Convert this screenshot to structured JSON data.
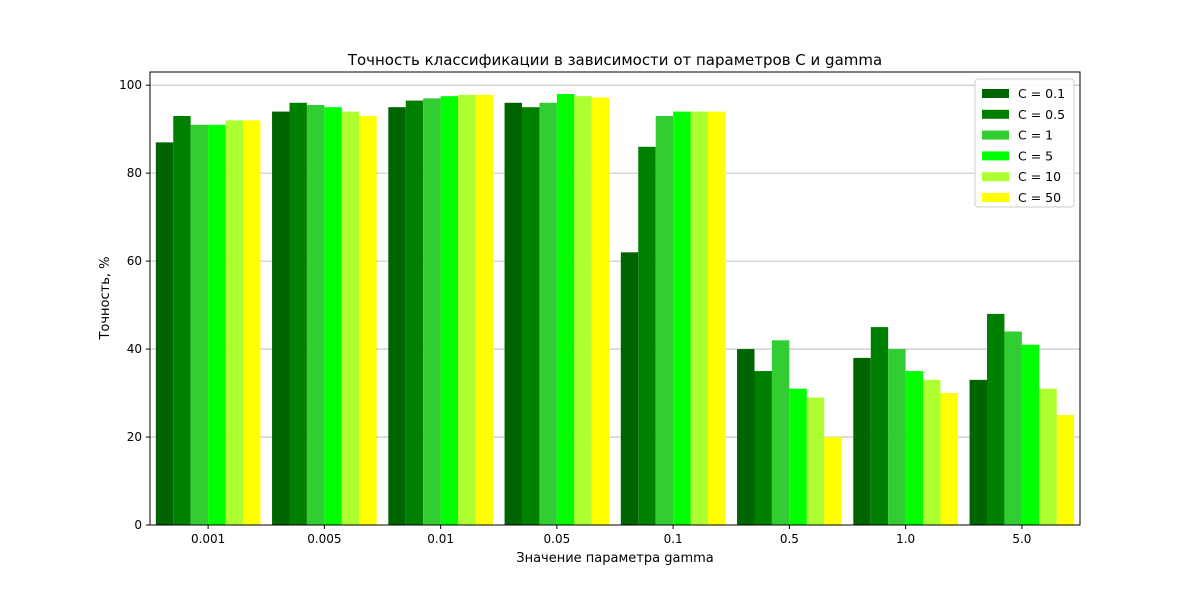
{
  "chart_data": {
    "type": "bar",
    "title": "Точность классификации в зависимости от параметров C и gamma",
    "xlabel": "Значение параметра gamma",
    "ylabel": "Точность, %",
    "categories": [
      "0.001",
      "0.005",
      "0.01",
      "0.05",
      "0.1",
      "0.5",
      "1.0",
      "5.0"
    ],
    "ylim": [
      0,
      103
    ],
    "yticks": [
      0,
      20,
      40,
      60,
      80,
      100
    ],
    "grid": "y",
    "legend_position": "top-right",
    "series": [
      {
        "name": "C = 0.1",
        "color": "#006400",
        "values": [
          87,
          94,
          95,
          96,
          62,
          40,
          38,
          33
        ]
      },
      {
        "name": "C = 0.5",
        "color": "#008000",
        "values": [
          93,
          96,
          96.5,
          95,
          86,
          35,
          45,
          48
        ]
      },
      {
        "name": "C = 1",
        "color": "#32CD32",
        "values": [
          91,
          95.5,
          97,
          96,
          93,
          42,
          40,
          44
        ]
      },
      {
        "name": "C = 5",
        "color": "#00FF00",
        "values": [
          91,
          95,
          97.5,
          98,
          94,
          31,
          35,
          41
        ]
      },
      {
        "name": "C = 10",
        "color": "#ADFF2F",
        "values": [
          92,
          94,
          97.8,
          97.5,
          94,
          29,
          33,
          31
        ]
      },
      {
        "name": "C = 50",
        "color": "#FFFF00",
        "values": [
          92,
          93,
          97.8,
          97.2,
          94,
          20,
          30,
          25
        ]
      }
    ]
  }
}
